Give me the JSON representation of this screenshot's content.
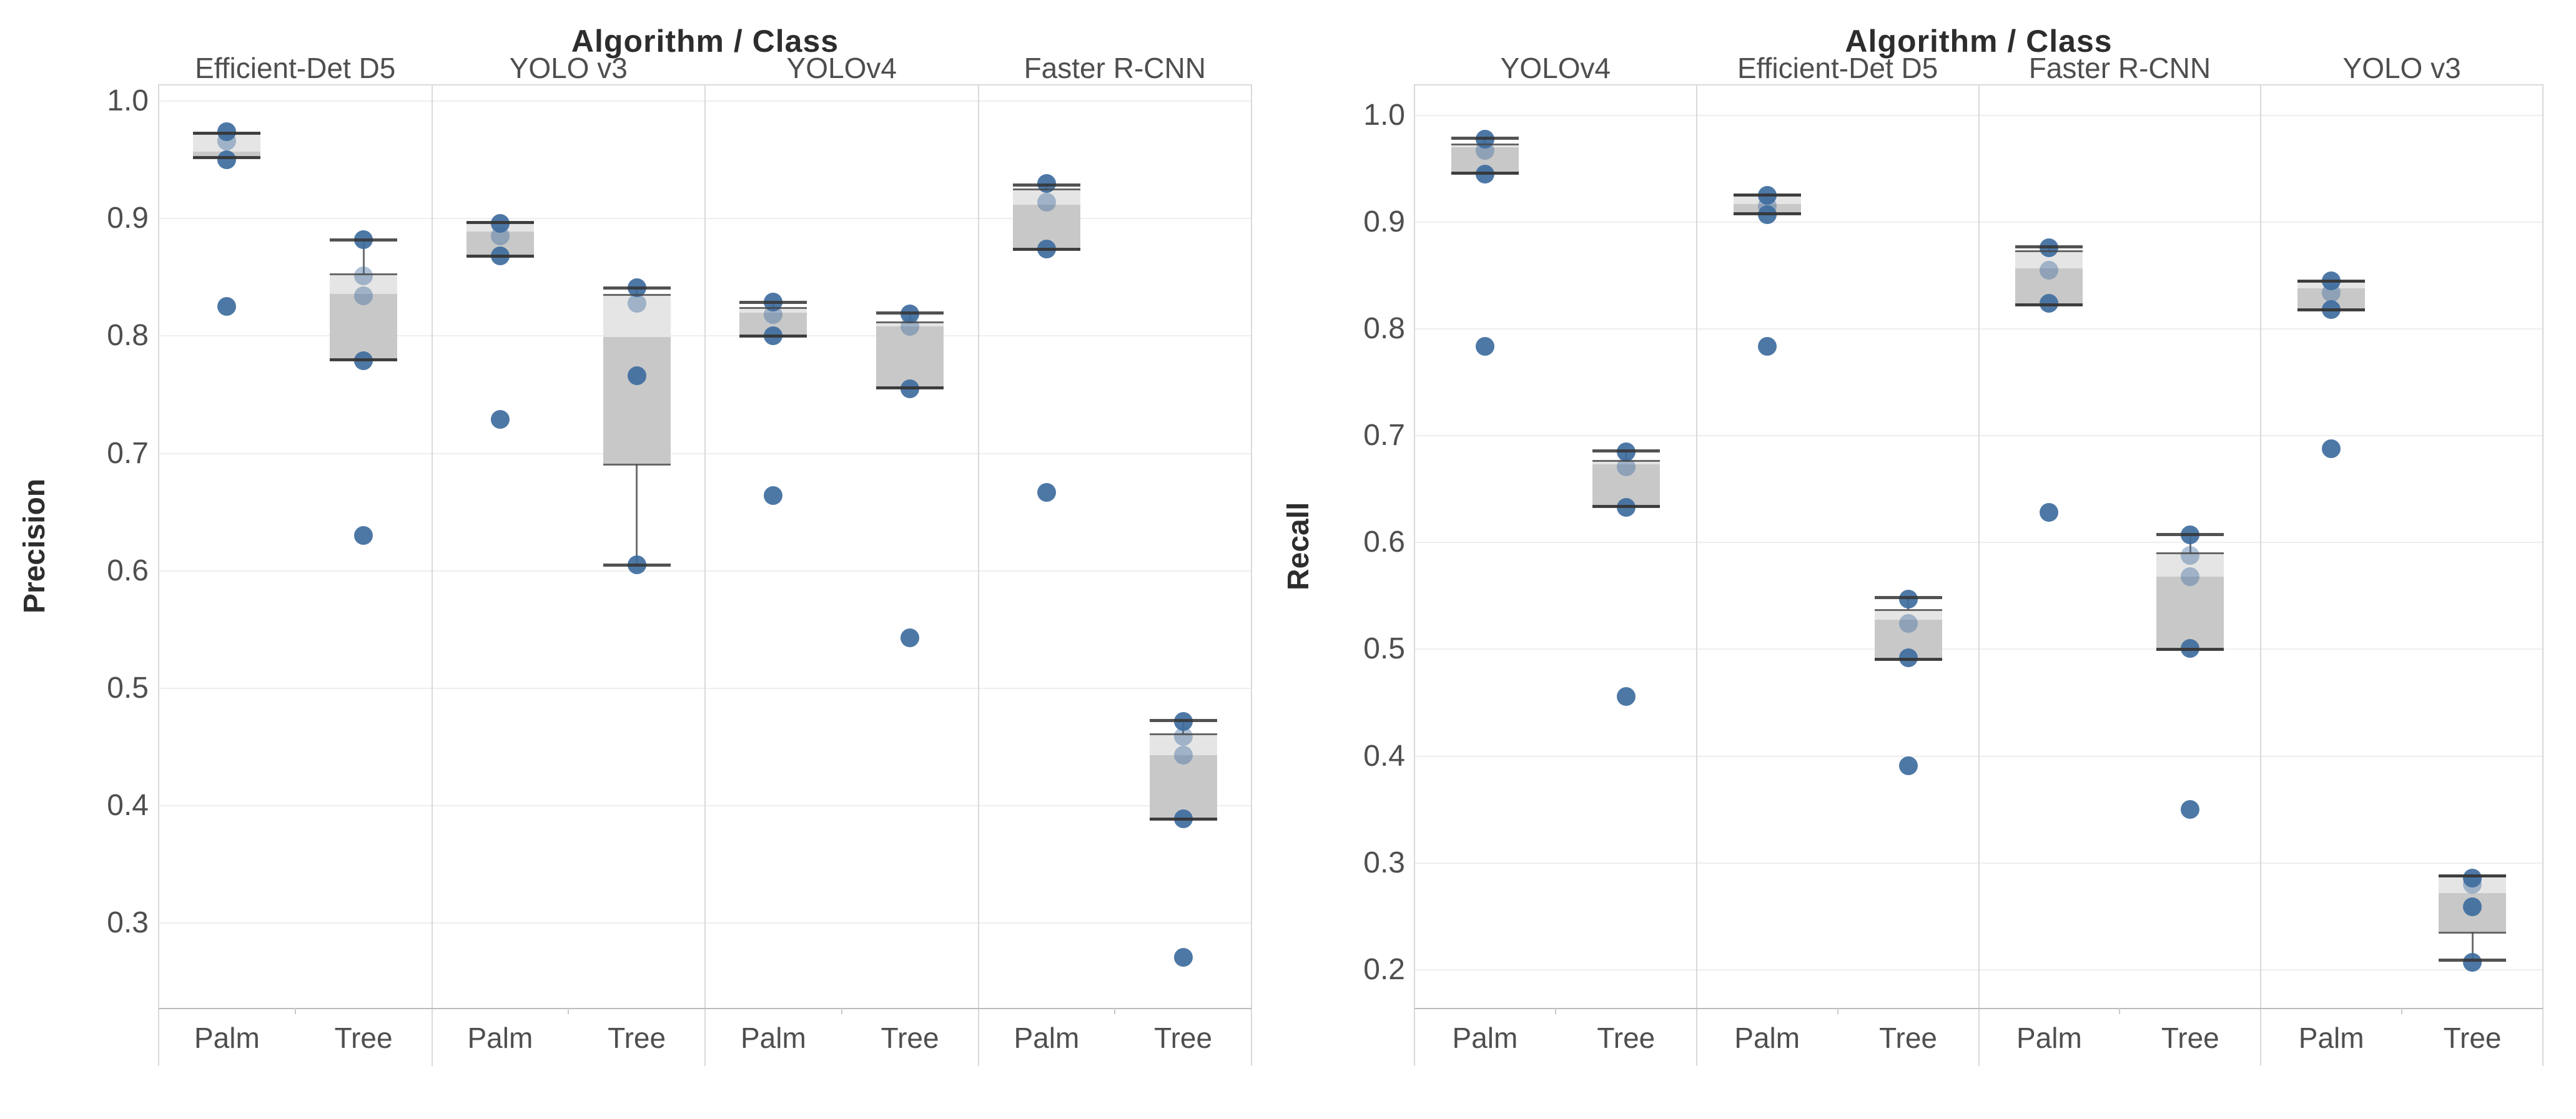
{
  "page": {
    "background": "#ffffff",
    "figure_kind": "faceted box plots with jittered data points",
    "facet_dimension": "Algorithm / Class"
  },
  "colors": {
    "point": "#3e6c9e",
    "box_upper_fill": "#e5e5e5",
    "box_lower_fill": "#c8c8c8",
    "box_line": "#3a3a3a",
    "gridline": "#eeeeee",
    "frame": "#d9d9d9",
    "tick_text": "#4e4e4e",
    "title_text": "#2d2d2d"
  },
  "chart_data": [
    {
      "type": "boxplot",
      "title": "Algorithm / Class",
      "ylabel": "Precision",
      "categories": [
        "Palm",
        "Tree"
      ],
      "yticks": [
        "1.0",
        "0.9",
        "0.8",
        "0.7",
        "0.6",
        "0.5",
        "0.4",
        "0.3"
      ],
      "ylim": [
        0.228,
        1.0143
      ],
      "grid": true,
      "legend_position": "none",
      "panels": [
        {
          "algorithm": "Efficient-Det D5",
          "groups": [
            {
              "class": "Palm",
              "whisker_high": 0.973,
              "q3": 0.973,
              "median": 0.957,
              "q1": 0.952,
              "whisker_low": 0.952,
              "points": [
                0.974,
                0.95,
                0.825
              ],
              "soft_points": [
                0.966
              ]
            },
            {
              "class": "Tree",
              "whisker_high": 0.882,
              "q3": 0.853,
              "median": 0.836,
              "q1": 0.78,
              "whisker_low": 0.78,
              "points": [
                0.882,
                0.779,
                0.63
              ],
              "soft_points": [
                0.851,
                0.834
              ]
            }
          ]
        },
        {
          "algorithm": "YOLO v3",
          "groups": [
            {
              "class": "Palm",
              "whisker_high": 0.897,
              "q3": 0.897,
              "median": 0.889,
              "q1": 0.868,
              "whisker_low": 0.868,
              "points": [
                0.896,
                0.868,
                0.729
              ],
              "soft_points": [
                0.885
              ]
            },
            {
              "class": "Tree",
              "whisker_high": 0.841,
              "q3": 0.835,
              "median": 0.799,
              "q1": 0.691,
              "whisker_low": 0.605,
              "points": [
                0.841,
                0.766,
                0.605
              ],
              "soft_points": [
                0.828
              ]
            }
          ]
        },
        {
          "algorithm": "YOLOv4",
          "groups": [
            {
              "class": "Palm",
              "whisker_high": 0.829,
              "q3": 0.824,
              "median": 0.82,
              "q1": 0.8,
              "whisker_low": 0.8,
              "points": [
                0.829,
                0.8,
                0.664
              ],
              "soft_points": [
                0.818
              ]
            },
            {
              "class": "Tree",
              "whisker_high": 0.82,
              "q3": 0.812,
              "median": 0.808,
              "q1": 0.756,
              "whisker_low": 0.756,
              "points": [
                0.819,
                0.755,
                0.543
              ],
              "soft_points": [
                0.808
              ]
            }
          ]
        },
        {
          "algorithm": "Faster R-CNN",
          "groups": [
            {
              "class": "Palm",
              "whisker_high": 0.929,
              "q3": 0.925,
              "median": 0.912,
              "q1": 0.874,
              "whisker_low": 0.874,
              "points": [
                0.93,
                0.874,
                0.667
              ],
              "soft_points": [
                0.914
              ]
            },
            {
              "class": "Tree",
              "whisker_high": 0.473,
              "q3": 0.461,
              "median": 0.443,
              "q1": 0.389,
              "whisker_low": 0.389,
              "points": [
                0.472,
                0.389,
                0.271
              ],
              "soft_points": [
                0.459,
                0.443
              ]
            }
          ]
        }
      ]
    },
    {
      "type": "boxplot",
      "title": "Algorithm / Class",
      "ylabel": "Recall",
      "categories": [
        "Palm",
        "Tree"
      ],
      "yticks": [
        "1.0",
        "0.9",
        "0.8",
        "0.7",
        "0.6",
        "0.5",
        "0.4",
        "0.3",
        "0.2"
      ],
      "ylim": [
        0.1642,
        1.0292
      ],
      "grid": true,
      "legend_position": "none",
      "panels": [
        {
          "algorithm": "YOLOv4",
          "groups": [
            {
              "class": "Palm",
              "whisker_high": 0.979,
              "q3": 0.973,
              "median": 0.97,
              "q1": 0.946,
              "whisker_low": 0.946,
              "points": [
                0.978,
                0.945,
                0.784
              ],
              "soft_points": [
                0.967
              ]
            },
            {
              "class": "Tree",
              "whisker_high": 0.686,
              "q3": 0.677,
              "median": 0.673,
              "q1": 0.634,
              "whisker_low": 0.634,
              "points": [
                0.685,
                0.633,
                0.456
              ],
              "soft_points": [
                0.671
              ]
            }
          ]
        },
        {
          "algorithm": "Efficient-Det D5",
          "groups": [
            {
              "class": "Palm",
              "whisker_high": 0.926,
              "q3": 0.926,
              "median": 0.917,
              "q1": 0.908,
              "whisker_low": 0.908,
              "points": [
                0.925,
                0.907,
                0.784
              ],
              "soft_points": [
                0.915
              ]
            },
            {
              "class": "Tree",
              "whisker_high": 0.549,
              "q3": 0.537,
              "median": 0.528,
              "q1": 0.491,
              "whisker_low": 0.491,
              "points": [
                0.547,
                0.492,
                0.391
              ],
              "soft_points": [
                0.524
              ]
            }
          ]
        },
        {
          "algorithm": "Faster R-CNN",
          "groups": [
            {
              "class": "Palm",
              "whisker_high": 0.877,
              "q3": 0.873,
              "median": 0.857,
              "q1": 0.823,
              "whisker_low": 0.823,
              "points": [
                0.876,
                0.824,
                0.628
              ],
              "soft_points": [
                0.855
              ]
            },
            {
              "class": "Tree",
              "whisker_high": 0.608,
              "q3": 0.59,
              "median": 0.568,
              "q1": 0.5,
              "whisker_low": 0.5,
              "points": [
                0.607,
                0.501,
                0.35
              ],
              "soft_points": [
                0.588,
                0.568
              ]
            }
          ]
        },
        {
          "algorithm": "YOLO v3",
          "groups": [
            {
              "class": "Palm",
              "whisker_high": 0.845,
              "q3": 0.845,
              "median": 0.838,
              "q1": 0.818,
              "whisker_low": 0.818,
              "points": [
                0.845,
                0.818,
                0.688
              ],
              "soft_points": [
                0.834
              ]
            },
            {
              "class": "Tree",
              "whisker_high": 0.288,
              "q3": 0.288,
              "median": 0.272,
              "q1": 0.235,
              "whisker_low": 0.209,
              "points": [
                0.286,
                0.259,
                0.207
              ],
              "soft_points": [
                0.28
              ]
            }
          ]
        }
      ]
    }
  ]
}
